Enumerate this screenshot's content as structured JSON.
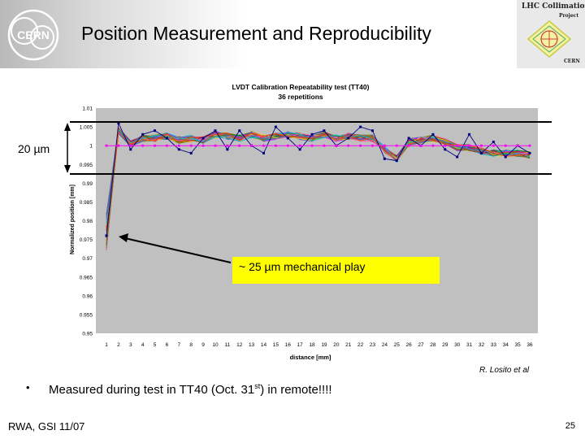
{
  "slide": {
    "title": "Position Measurement and Reproducibility",
    "band_label": "20 µm",
    "callout": "~ 25 µm mechanical play",
    "credit": "R. Losito et al",
    "bullet_symbol": "•",
    "bullet_text_main": "Measured during test in TT40 (Oct. 31",
    "bullet_text_sup": "st",
    "bullet_text_end": ") in remote!!!!",
    "footer_left": "RWA, GSI 11/07",
    "page_number": "25"
  },
  "logos": {
    "left": "CERN",
    "right_line1": "LHC Collimation",
    "right_line2": "Project",
    "right_line3": "CERN",
    "left_icon": "cern-logo-icon",
    "right_icon": "lhc-collimation-logo-icon"
  },
  "colors": {
    "plot_background": "#c0c0c0",
    "reference_line": "#ff00ff",
    "callout": "#ffff00",
    "band_line": "#000000"
  },
  "chart_data": {
    "type": "line",
    "title": "LVDT Calibration Repeatability test (TT40)",
    "subtitle": "36 repetitions",
    "xlabel": "distance [mm]",
    "ylabel": "Normalized position [mm]",
    "xlim": [
      1,
      36
    ],
    "ylim": [
      0.95,
      1.01
    ],
    "x": [
      1,
      2,
      3,
      4,
      5,
      6,
      7,
      8,
      9,
      10,
      11,
      12,
      13,
      14,
      15,
      16,
      17,
      18,
      19,
      20,
      21,
      22,
      23,
      24,
      25,
      26,
      27,
      28,
      29,
      30,
      31,
      32,
      33,
      34,
      35,
      36
    ],
    "x_tick_labels": [
      "1",
      "2",
      "3",
      "4",
      "5",
      "6",
      "7",
      "8",
      "9",
      "10",
      "11",
      "12",
      "13",
      "14",
      "15",
      "16",
      "17",
      "18",
      "19",
      "20",
      "21",
      "22",
      "23",
      "24",
      "25",
      "26",
      "27",
      "28",
      "29",
      "30",
      "31",
      "32",
      "33",
      "34",
      "35",
      "36"
    ],
    "y_ticks": [
      0.95,
      0.955,
      0.96,
      0.965,
      0.97,
      0.975,
      0.98,
      0.985,
      0.99,
      0.995,
      1,
      1.005,
      1.01
    ],
    "y_tick_labels": [
      "0.95",
      "0.955",
      "0.96",
      "0.965",
      "0.97",
      "0.975",
      "0.98",
      "0.985",
      "0.99",
      "0.995",
      "1",
      "1.005",
      "1.01"
    ],
    "grid": false,
    "series_count": 36,
    "reference": {
      "values": [
        1,
        1,
        1,
        1,
        1,
        1,
        1,
        1,
        1,
        1,
        1,
        1,
        1,
        1,
        1,
        1,
        1,
        1,
        1,
        1,
        1,
        1,
        1,
        1,
        1,
        1,
        1,
        1,
        1,
        1,
        1,
        1,
        1,
        1,
        1,
        1
      ]
    },
    "series_base": [
      0.977,
      1.004,
      1.0005,
      1.002,
      1.002,
      1.0025,
      1.0015,
      1.002,
      1.0015,
      1.003,
      1.0025,
      1.002,
      1.003,
      1.002,
      1.0025,
      1.003,
      1.0025,
      1.002,
      1.003,
      1.002,
      1.0025,
      1.002,
      1.002,
      0.999,
      0.9965,
      1.001,
      1.0015,
      1.002,
      1.001,
      0.9995,
      0.9995,
      0.9985,
      0.998,
      0.998,
      0.998,
      0.9975
    ],
    "series_spread": 0.0018,
    "outlier_series": {
      "values": [
        0.976,
        1.006,
        0.999,
        1.003,
        1.004,
        1.002,
        0.999,
        0.998,
        1.002,
        1.004,
        0.999,
        1.004,
        1.0,
        0.998,
        1.005,
        1.002,
        0.999,
        1.003,
        1.004,
        1.0,
        1.002,
        1.005,
        1.004,
        0.9965,
        0.996,
        1.002,
        1.0,
        1.003,
        0.999,
        0.997,
        1.003,
        0.998,
        1.001,
        0.997,
        1.0,
        0.998
      ]
    }
  }
}
